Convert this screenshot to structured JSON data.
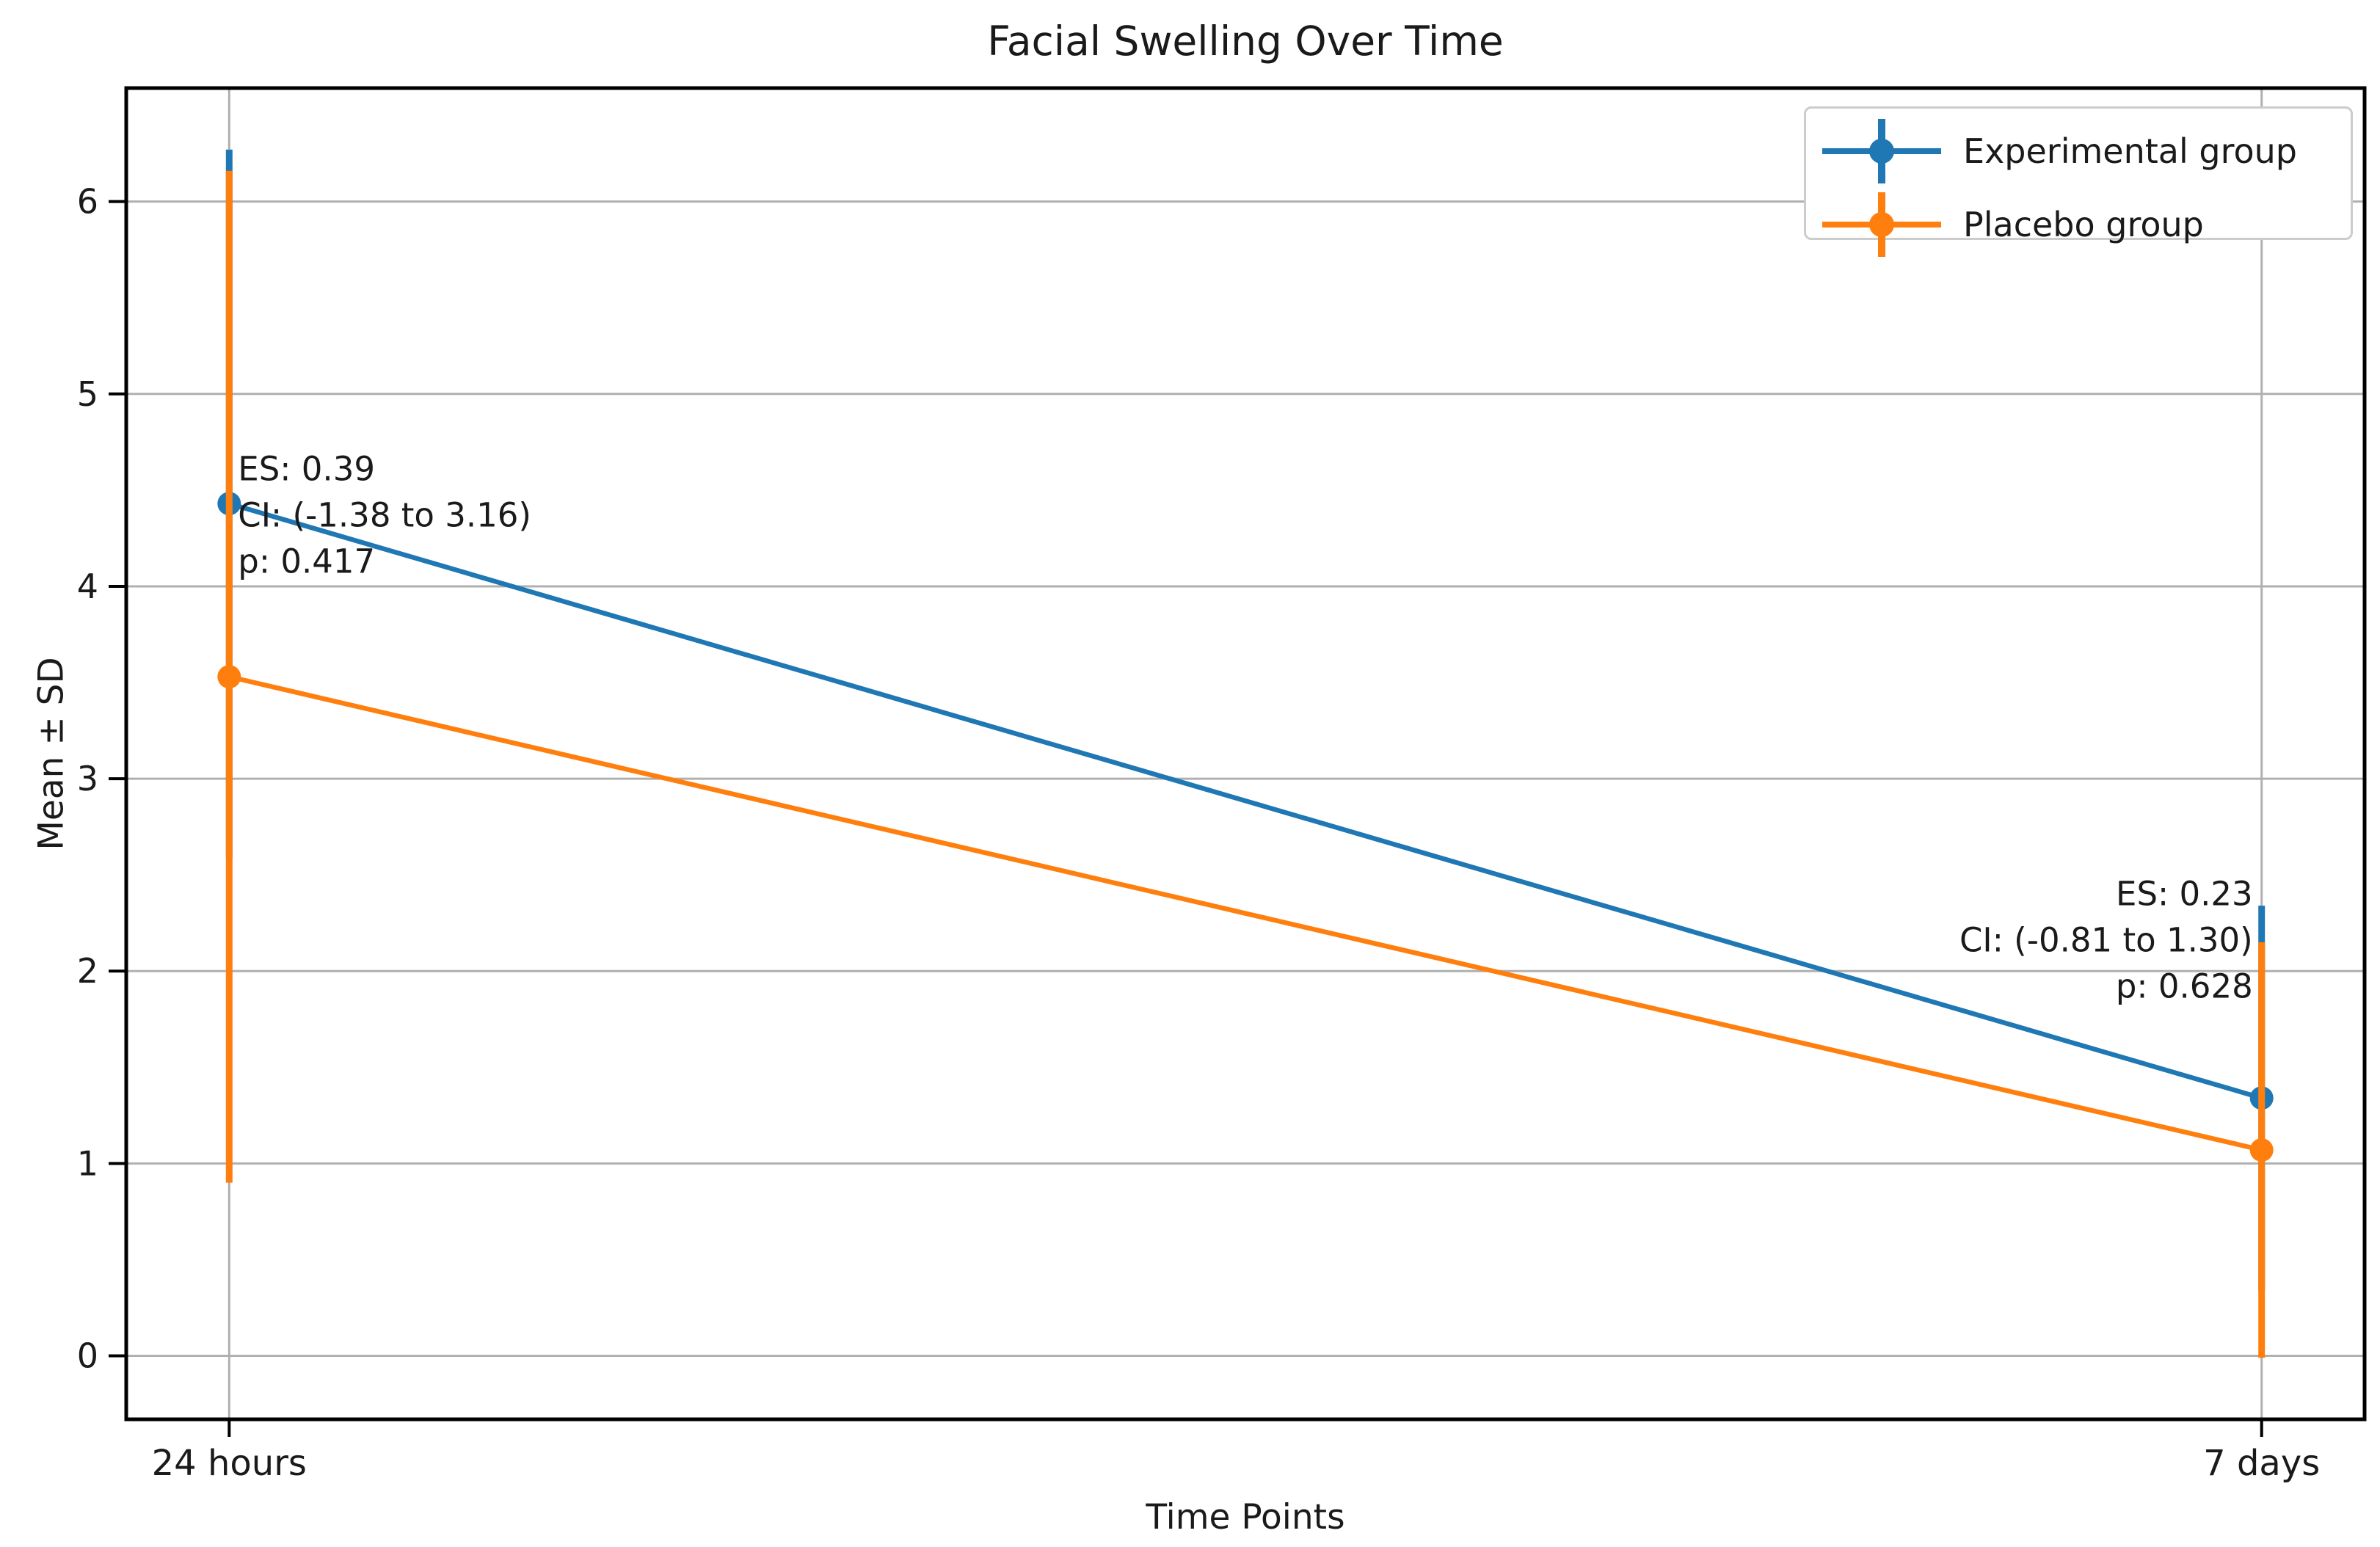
{
  "chart": {
    "title": "Facial Swelling Over Time",
    "xlabel": "Time Points",
    "ylabel": "Mean ± SD"
  },
  "chart_data": {
    "type": "line",
    "title": "Facial Swelling Over Time",
    "xlabel": "Time Points",
    "ylabel": "Mean ± SD",
    "categories": [
      "24 hours",
      "7 days"
    ],
    "series": [
      {
        "name": "Experimental group",
        "color": "#1f77b4",
        "means": [
          4.43,
          1.34
        ],
        "sd": [
          1.84,
          1.0
        ]
      },
      {
        "name": "Placebo group",
        "color": "#ff7f0e",
        "means": [
          3.53,
          1.07
        ],
        "sd": [
          2.63,
          1.08
        ]
      }
    ],
    "yticks": [
      0,
      1,
      2,
      3,
      4,
      5,
      6
    ],
    "ylim": [
      -0.33,
      6.59
    ],
    "grid": true,
    "legend_position": "upper right",
    "colors": {
      "grid": "#b0b0b0",
      "spine": "#000000",
      "text": "#1a1a1a"
    },
    "annotations": [
      {
        "category_index": 0,
        "align": "left",
        "y_center": 4.37,
        "lines": [
          "ES: 0.39",
          "CI: (-1.38 to 3.16)",
          "p: 0.417"
        ]
      },
      {
        "category_index": 1,
        "align": "right",
        "y_center": 2.16,
        "lines": [
          "ES: 0.23",
          "CI: (-0.81 to 1.30)",
          "p: 0.628"
        ]
      }
    ]
  }
}
